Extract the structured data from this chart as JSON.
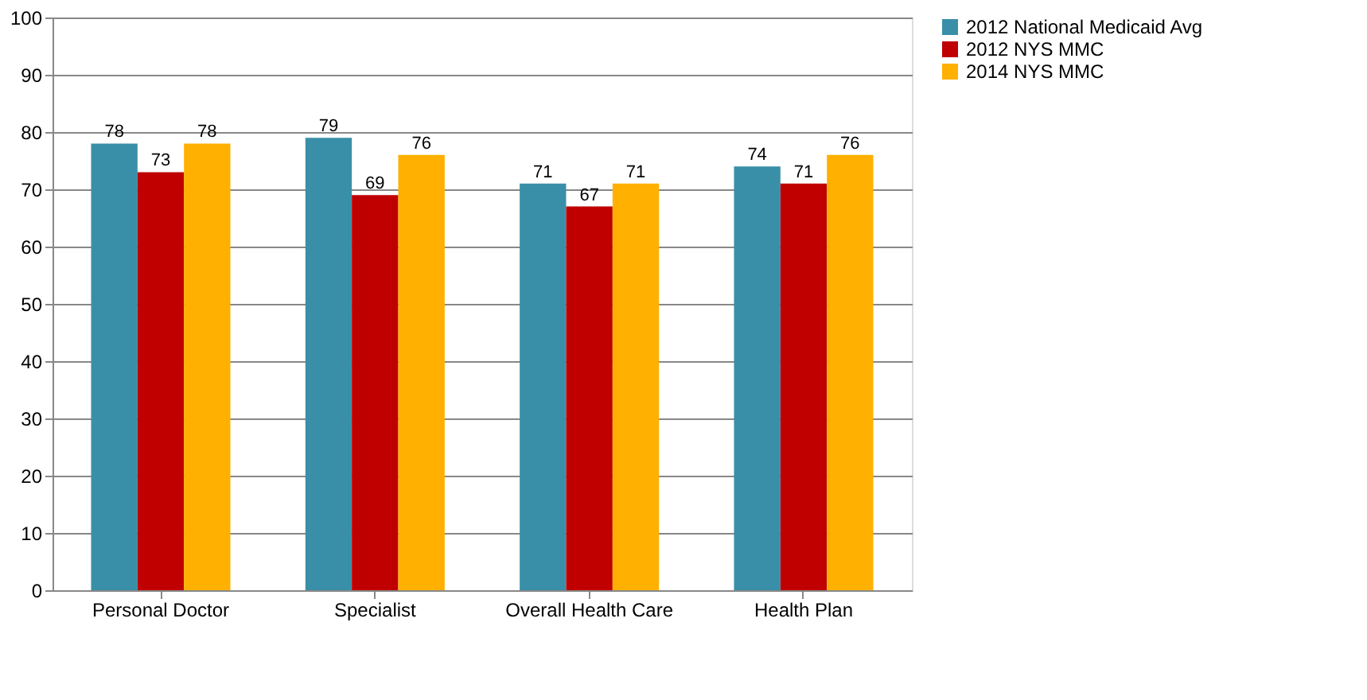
{
  "chart_data": {
    "type": "bar",
    "categories": [
      "Personal Doctor",
      "Specialist",
      "Overall Health Care",
      "Health Plan"
    ],
    "series": [
      {
        "name": "2012 National Medicaid Avg",
        "color": "#3a8fa8",
        "values": [
          78,
          79,
          71,
          74
        ]
      },
      {
        "name": "2012 NYS MMC",
        "color": "#c00000",
        "values": [
          73,
          69,
          67,
          71
        ]
      },
      {
        "name": "2014 NYS MMC",
        "color": "#ffb000",
        "values": [
          78,
          76,
          71,
          76
        ]
      }
    ],
    "ylim": [
      0,
      100
    ],
    "yticks": [
      0,
      10,
      20,
      30,
      40,
      50,
      60,
      70,
      80,
      90,
      100
    ],
    "grid": "y",
    "legend": "right",
    "data_labels": true
  }
}
